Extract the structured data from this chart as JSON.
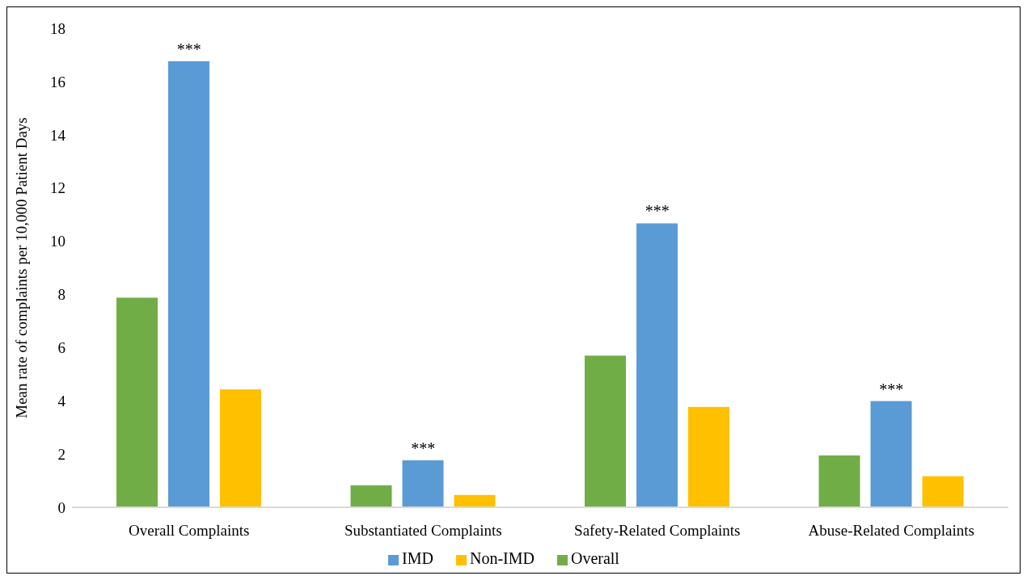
{
  "chart_data": {
    "type": "bar",
    "ylabel": "Mean rate of complaints per 10,000 Patient Days",
    "categories": [
      "Overall Complaints",
      "Substantiated Complaints",
      "Safety-Related Complaints",
      "Abuse-Related Complaints"
    ],
    "series": [
      {
        "name": "Overall",
        "color": "#70ad47",
        "values": [
          7.88,
          0.83,
          5.7,
          1.95
        ]
      },
      {
        "name": "IMD",
        "color": "#5b9bd5",
        "values": [
          16.76,
          1.77,
          10.67,
          3.99
        ]
      },
      {
        "name": "Non-IMD",
        "color": "#ffc000",
        "values": [
          4.43,
          0.46,
          3.77,
          1.17
        ]
      }
    ],
    "ylim": [
      0,
      18
    ],
    "yticks": [
      0,
      2,
      4,
      6,
      8,
      10,
      12,
      14,
      16,
      18
    ],
    "grid": false,
    "legend": "bottom",
    "annotations": [
      {
        "text": "***",
        "x": "Overall Complaints",
        "y": 16.76
      },
      {
        "text": "***",
        "x": "Substantiated Complaints",
        "y": 1.77
      },
      {
        "text": "***",
        "x": "Safety-Related Complaints",
        "y": 10.67
      },
      {
        "text": "***",
        "x": "Abuse-Related Complaints",
        "y": 3.99
      }
    ]
  }
}
